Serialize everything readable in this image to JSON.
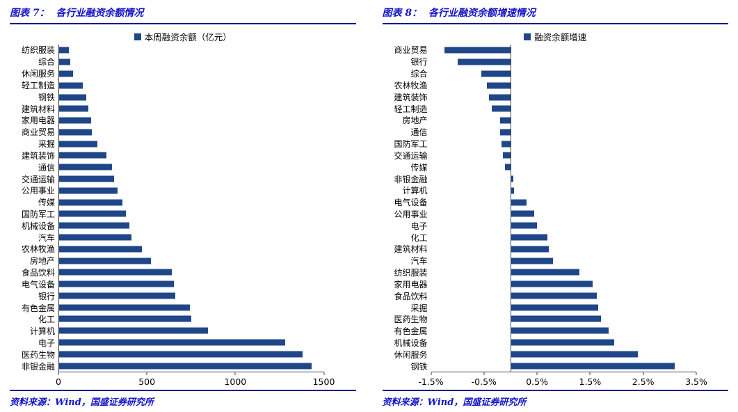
{
  "colors": {
    "bar": "#1F4788",
    "title_text": "#1414C8",
    "rule": "#00008B",
    "axis": "#404040"
  },
  "figures": [
    {
      "title": "图表 7：  各行业融资余额情况",
      "legend": "本周融资余额（亿元）",
      "source": "资料来源：Wind，国盛证券研究所"
    },
    {
      "title": "图表 8：  各行业融资余额增速情况",
      "legend": "融资余额增速",
      "source": "资料来源：Wind，国盛证券研究所"
    }
  ],
  "chart_data": [
    {
      "type": "bar",
      "orientation": "horizontal",
      "title": "各行业融资余额情况",
      "legend": "本周融资余额（亿元）",
      "unit": "亿元",
      "categories": [
        "纺织服装",
        "综合",
        "休闲服务",
        "轻工制造",
        "钢铁",
        "建筑材料",
        "家用电器",
        "商业贸易",
        "采掘",
        "建筑装饰",
        "通信",
        "交通运输",
        "公用事业",
        "传媒",
        "国防军工",
        "机械设备",
        "汽车",
        "农林牧渔",
        "房地产",
        "食品饮料",
        "电气设备",
        "银行",
        "有色金属",
        "化工",
        "计算机",
        "电子",
        "医药生物",
        "非银金融"
      ],
      "values": [
        55,
        65,
        80,
        135,
        155,
        165,
        180,
        185,
        215,
        270,
        300,
        310,
        330,
        360,
        380,
        400,
        410,
        470,
        520,
        640,
        650,
        660,
        740,
        750,
        845,
        1280,
        1380,
        1430
      ],
      "xlim": [
        0,
        1500
      ],
      "xticks": [
        0,
        500,
        1000,
        1500
      ],
      "tick_labels": [
        "0",
        "500",
        "1000",
        "1500"
      ],
      "grid": false,
      "legend_position": "top"
    },
    {
      "type": "bar",
      "orientation": "horizontal",
      "title": "各行业融资余额增速情况",
      "legend": "融资余额增速",
      "unit": "%",
      "categories": [
        "商业贸易",
        "银行",
        "综合",
        "农林牧渔",
        "建筑装饰",
        "轻工制造",
        "房地产",
        "通信",
        "国防军工",
        "交通运输",
        "传媒",
        "非银金融",
        "计算机",
        "电气设备",
        "公用事业",
        "电子",
        "化工",
        "建筑材料",
        "汽车",
        "纺织服装",
        "家用电器",
        "食品饮料",
        "采掘",
        "医药生物",
        "有色金属",
        "机械设备",
        "休闲服务",
        "钢铁"
      ],
      "values": [
        -1.25,
        -1.0,
        -0.55,
        -0.45,
        -0.4,
        -0.35,
        -0.2,
        -0.2,
        -0.17,
        -0.15,
        -0.1,
        0.05,
        0.07,
        0.3,
        0.45,
        0.5,
        0.7,
        0.72,
        0.8,
        1.3,
        1.55,
        1.62,
        1.65,
        1.7,
        1.85,
        1.95,
        2.4,
        3.1
      ],
      "xlim": [
        -1.5,
        3.5
      ],
      "xticks": [
        -1.5,
        -0.5,
        0.5,
        1.5,
        2.5,
        3.5
      ],
      "tick_labels": [
        "-1.5%",
        "-0.5%",
        "0.5%",
        "1.5%",
        "2.5%",
        "3.5%"
      ],
      "grid": false,
      "legend_position": "top"
    }
  ]
}
